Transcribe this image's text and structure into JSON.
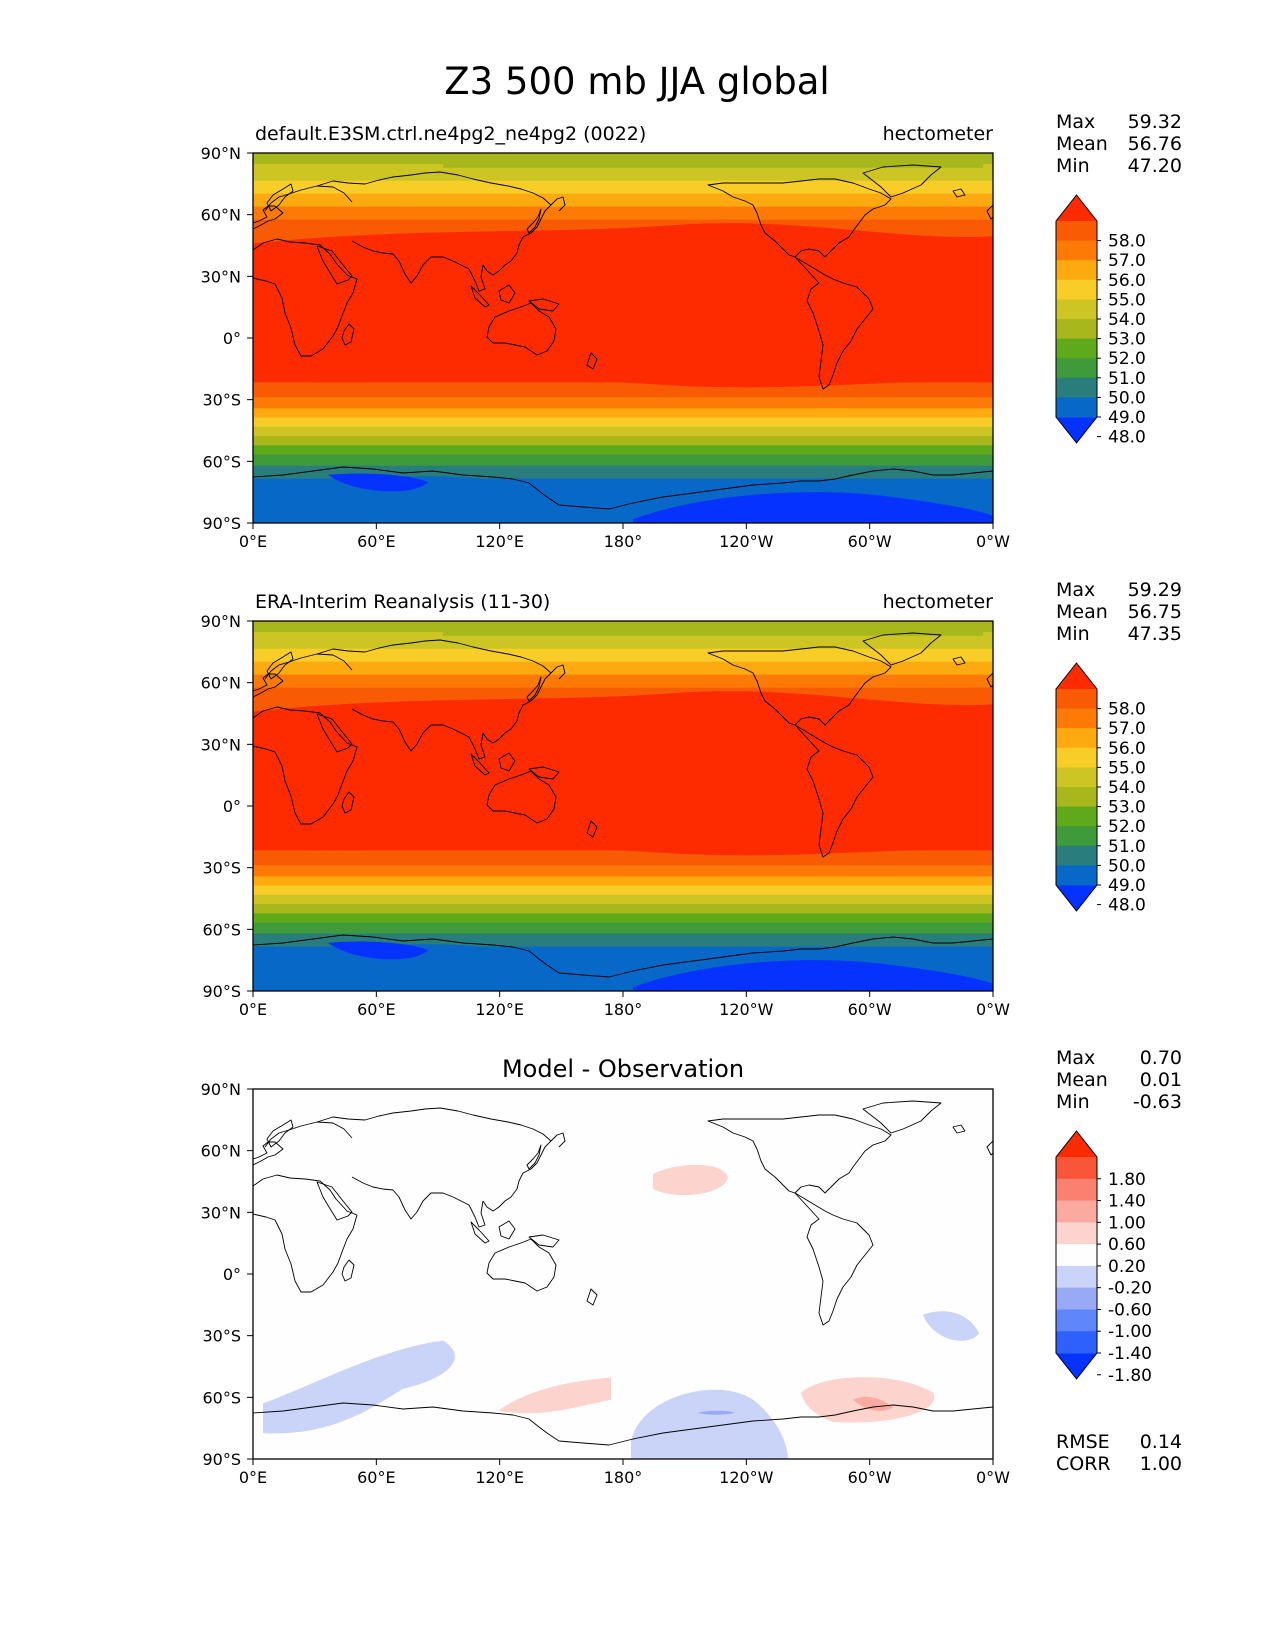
{
  "figure": {
    "title": "Z3 500 mb JJA global"
  },
  "axes": {
    "lat_labels": [
      "90°N",
      "60°N",
      "30°N",
      "0°",
      "30°S",
      "60°S",
      "90°S"
    ],
    "lon_labels": [
      "0°E",
      "60°E",
      "120°E",
      "180°",
      "120°W",
      "60°W",
      "0°W"
    ]
  },
  "colors": {
    "field": [
      "#0532ff",
      "#0868c8",
      "#2a7d7d",
      "#3f9a3b",
      "#5faa1b",
      "#a8b81c",
      "#cdc523",
      "#f9cd27",
      "#fdaa11",
      "#fd7a07",
      "#f95b05",
      "#fe2b00"
    ],
    "diff": [
      "#0532ff",
      "#2e60fe",
      "#5f86fb",
      "#98a9f6",
      "#cad3f8",
      "#fefefe",
      "#fcd3cd",
      "#fbaaa0",
      "#fa8070",
      "#f85539",
      "#fe2b00"
    ]
  },
  "panels": [
    {
      "title_left": "default.E3SM.ctrl.ne4pg2_ne4pg2 (0022)",
      "title_center": "",
      "units": "hectometer",
      "stats": [
        {
          "label": "Max",
          "value": "59.32"
        },
        {
          "label": "Mean",
          "value": "56.76"
        },
        {
          "label": "Min",
          "value": "47.20"
        }
      ],
      "colorbar_labels": [
        "58.0",
        "57.0",
        "56.0",
        "55.0",
        "54.0",
        "53.0",
        "52.0",
        "51.0",
        "50.0",
        "49.0",
        "48.0"
      ],
      "extra_stats": []
    },
    {
      "title_left": "ERA-Interim Reanalysis (11-30)",
      "title_center": "",
      "units": "hectometer",
      "stats": [
        {
          "label": "Max",
          "value": "59.29"
        },
        {
          "label": "Mean",
          "value": "56.75"
        },
        {
          "label": "Min",
          "value": "47.35"
        }
      ],
      "colorbar_labels": [
        "58.0",
        "57.0",
        "56.0",
        "55.0",
        "54.0",
        "53.0",
        "52.0",
        "51.0",
        "50.0",
        "49.0",
        "48.0"
      ],
      "extra_stats": []
    },
    {
      "title_left": "",
      "title_center": "Model - Observation",
      "units": "",
      "stats": [
        {
          "label": "Max",
          "value": "0.70"
        },
        {
          "label": "Mean",
          "value": "0.01"
        },
        {
          "label": "Min",
          "value": "-0.63"
        }
      ],
      "colorbar_labels": [
        "1.80",
        "1.40",
        "1.00",
        "0.60",
        "0.20",
        "-0.20",
        "-0.60",
        "-1.00",
        "-1.40",
        "-1.80"
      ],
      "extra_stats": [
        {
          "label": "RMSE",
          "value": "0.14"
        },
        {
          "label": "CORR",
          "value": "1.00"
        }
      ]
    }
  ]
}
